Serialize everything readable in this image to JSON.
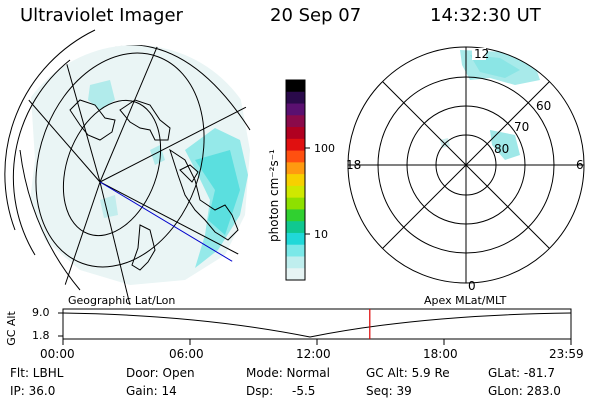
{
  "header": {
    "instrument": "Ultraviolet Imager",
    "date": "20 Sep 07",
    "time": "14:32:30 UT"
  },
  "colorbar": {
    "label": "photon cm⁻²s⁻¹",
    "ticks": [
      "100",
      "10"
    ],
    "colors": [
      "#000000",
      "#2a0a4a",
      "#5a1070",
      "#8a0a4a",
      "#b00020",
      "#e01010",
      "#ff5010",
      "#ff9a10",
      "#f7d000",
      "#cfe800",
      "#8ee000",
      "#30d030",
      "#10c890",
      "#20d8d8",
      "#7ae8e8",
      "#bfeeee",
      "#e6f4f4"
    ]
  },
  "left_panel": {
    "label": "Geographic Lat/Lon"
  },
  "right_panel": {
    "label": "Apex MLat/MLT",
    "mlt_labels": {
      "top": "12",
      "left": "18",
      "right": "6",
      "bottom": "0"
    },
    "lat_labels": [
      "60",
      "70",
      "80"
    ]
  },
  "altitude_plot": {
    "ylabel": "GC Alt",
    "yticks": [
      "9.0",
      "1.8"
    ],
    "xticks": [
      "00:00",
      "06:00",
      "12:00",
      "18:00",
      "23:59"
    ],
    "current_time_fraction": 0.604
  },
  "status": {
    "flt": "Flt: LBHL",
    "ip": "IP: 36.0",
    "door": "Door: Open",
    "gain": "Gain: 14",
    "mode": "Mode: Normal",
    "dsp_label": "Dsp:",
    "dsp_value": "-5.5",
    "gc_alt": "GC Alt: 5.9 Re",
    "seq": "Seq: 39",
    "glat": "GLat: -81.7",
    "glon": "GLon: 283.0"
  }
}
